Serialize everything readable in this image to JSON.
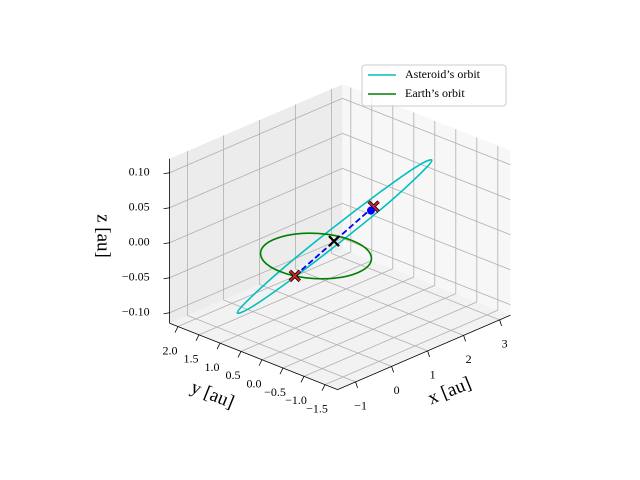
{
  "chart_data": {
    "type": "line3d",
    "xlabel": "x [au]",
    "ylabel": "y [au]",
    "zlabel": "z [au]",
    "xlim": [
      -1.5,
      3.3
    ],
    "ylim": [
      -1.8,
      2.2
    ],
    "zlim": [
      -0.115,
      0.12
    ],
    "xticks": [
      {
        "value": -1,
        "label": "−1"
      },
      0,
      1,
      2,
      3
    ],
    "yticks": [
      {
        "value": -1.5,
        "label": "−1.5"
      },
      {
        "value": -1.0,
        "label": "−1.0"
      },
      {
        "value": -0.5,
        "label": "−0.5"
      },
      {
        "value": 0.0,
        "label": "0.0"
      },
      0.5,
      {
        "value": 1.0,
        "label": "1.0"
      },
      1.5,
      {
        "value": 2.0,
        "label": "2.0"
      }
    ],
    "zticks": [
      {
        "value": -0.1,
        "label": "−0.10"
      },
      {
        "value": -0.05,
        "label": "−0.05"
      },
      {
        "value": 0.0,
        "label": "0.00"
      },
      {
        "value": 0.05,
        "label": "0.05"
      },
      {
        "value": 0.1,
        "label": "0.10"
      }
    ],
    "grid": true,
    "legend": "upper right",
    "series": [
      {
        "name": "Asteroid’s orbit",
        "color": "#00bfbf",
        "closed": true,
        "x": [
          2.41,
          2.13,
          1.53,
          0.75,
          0.02,
          -0.48,
          -0.61,
          -0.33,
          0.28,
          1.05,
          1.79,
          2.28
        ],
        "y": [
          -0.69,
          -0.67,
          -0.39,
          0.09,
          0.63,
          1.09,
          1.35,
          1.33,
          1.05,
          0.57,
          0.03,
          -0.43
        ],
        "z": [
          0.1,
          0.087,
          0.05,
          0,
          -0.05,
          -0.087,
          -0.1,
          -0.087,
          -0.05,
          0,
          0.05,
          0.087
        ]
      },
      {
        "name": "Earth’s orbit",
        "color": "#008000",
        "closed": true,
        "x": [
          1,
          0.87,
          0.5,
          0,
          -0.5,
          -0.87,
          -1,
          -0.87,
          -0.5,
          0,
          0.5,
          0.87
        ],
        "y": [
          0,
          0.5,
          0.87,
          1,
          0.87,
          0.5,
          0,
          -0.5,
          -0.87,
          -1,
          -0.87,
          -0.5
        ],
        "z": [
          0,
          0,
          0,
          0,
          0,
          0,
          0,
          0,
          0,
          0,
          0,
          0
        ]
      }
    ],
    "segments": [
      {
        "color": "#0000ff",
        "dashed": true,
        "x": [
          -0.95,
          1.25
        ],
        "y": [
          -0.31,
          -0.3
        ],
        "z": [
          0,
          0.05
        ]
      }
    ],
    "points": [
      {
        "marker": "x",
        "color": "#d62728",
        "edge": "#000000",
        "x": -0.95,
        "y": -0.31,
        "z": 0
      },
      {
        "marker": "x",
        "color": "#d62728",
        "edge": "#000000",
        "x": 1.25,
        "y": -0.3,
        "z": 0.05
      },
      {
        "marker": "o",
        "color": "#0000ff",
        "x": 1.2,
        "y": -0.28,
        "z": 0.045
      },
      {
        "marker": "x",
        "color": "#000000",
        "x": 0.15,
        "y": -0.3,
        "z": 0.025
      }
    ]
  }
}
